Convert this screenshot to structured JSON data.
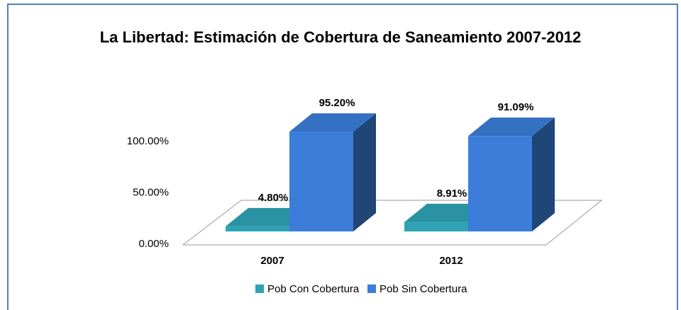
{
  "chart_data": {
    "type": "bar3d",
    "title": "La Libertad: Estimación de Cobertura  de Saneamiento 2007-2012",
    "categories": [
      "2007",
      "2012"
    ],
    "series": [
      {
        "name": "Pob Con Cobertura",
        "color": "#2ea3b5",
        "values": [
          4.8,
          8.91
        ],
        "value_labels": [
          "4.80%",
          "8.91%"
        ]
      },
      {
        "name": "Pob Sin Cobertura",
        "color": "#3b7dd8",
        "values": [
          95.2,
          91.09
        ],
        "value_labels": [
          "95.20%",
          "91.09%"
        ]
      }
    ],
    "ylim": [
      0,
      100
    ],
    "yticks": [
      {
        "value": 0,
        "label": "0.00%"
      },
      {
        "value": 50,
        "label": "50.00%"
      },
      {
        "value": 100,
        "label": "100.00%"
      }
    ],
    "legend": "bottom"
  }
}
